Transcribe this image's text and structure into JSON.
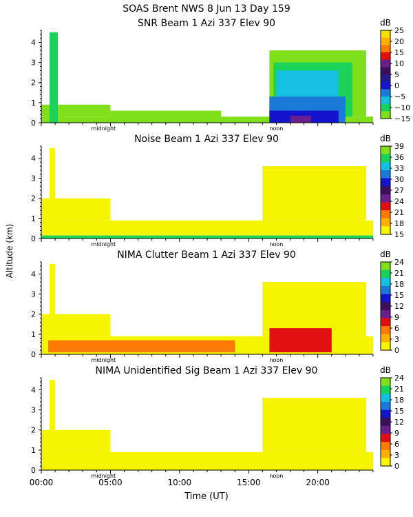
{
  "header": {
    "line1": "SOAS Brent NWS    8 Jun 13 Day 159"
  },
  "shared": {
    "xlabel": "Time (UT)",
    "ylabel": "Altitude (km)",
    "xlim": [
      0,
      24
    ],
    "ylim": [
      0,
      4.6
    ],
    "xticks": [
      {
        "v": 0,
        "label": "00:00"
      },
      {
        "v": 5,
        "label": "05:00"
      },
      {
        "v": 10,
        "label": "10:00"
      },
      {
        "v": 15,
        "label": "15:00"
      },
      {
        "v": 20,
        "label": "20:00"
      }
    ],
    "yticks": [
      0,
      1,
      2,
      3,
      4
    ],
    "markers": [
      {
        "v": 4.5,
        "label": "midnight"
      },
      {
        "v": 17.0,
        "label": "noon"
      }
    ],
    "unit": "dB"
  },
  "chart_data": [
    {
      "type": "heatmap",
      "title": "SNR Beam 1 Azi 337 Elev 90",
      "colorbar_ticks": [
        "25",
        "20",
        "15",
        "10",
        "5",
        "0",
        "−5",
        "−10",
        "−15"
      ],
      "colors": [
        "#7fe01a",
        "#1ad15a",
        "#16c0e0",
        "#1a7ad6",
        "#1414cc",
        "#241a8a",
        "#3b0f5a",
        "#6a1f8e",
        "#e01010",
        "#ff7a00",
        "#ffb000",
        "#f5e000"
      ],
      "regions": [
        {
          "x": [
            0,
            24
          ],
          "y": [
            0,
            0.3
          ],
          "level": 0
        },
        {
          "x": [
            0,
            5
          ],
          "y": [
            0.3,
            0.9
          ],
          "level": 0
        },
        {
          "x": [
            0.6,
            1.2
          ],
          "y": [
            0,
            4.5
          ],
          "level": 1
        },
        {
          "x": [
            5,
            13
          ],
          "y": [
            0.2,
            0.6
          ],
          "level": 0
        },
        {
          "x": [
            16.5,
            23.5
          ],
          "y": [
            0.3,
            3.6
          ],
          "level": 0
        },
        {
          "x": [
            16.8,
            22.5
          ],
          "y": [
            0.3,
            3.0
          ],
          "level": 1
        },
        {
          "x": [
            17,
            21.5
          ],
          "y": [
            0,
            2.6
          ],
          "level": 2
        },
        {
          "x": [
            16.5,
            22
          ],
          "y": [
            0,
            1.3
          ],
          "level": 3
        },
        {
          "x": [
            16.5,
            21.5
          ],
          "y": [
            0,
            0.6
          ],
          "level": 4
        },
        {
          "x": [
            18,
            19.5
          ],
          "y": [
            0,
            0.35
          ],
          "level": 7
        }
      ]
    },
    {
      "type": "heatmap",
      "title": "Noise Beam 1 Azi 337 Elev 90",
      "colorbar_ticks": [
        "39",
        "36",
        "33",
        "30",
        "27",
        "24",
        "21",
        "18",
        "15"
      ],
      "colors": [
        "#f5f500",
        "#ffb000",
        "#ff7a00",
        "#e01010",
        "#6a1f8e",
        "#3b0f5a",
        "#1414cc",
        "#1a7ad6",
        "#16c0e0",
        "#1ad15a",
        "#7fe01a"
      ],
      "regions": [
        {
          "x": [
            0,
            24
          ],
          "y": [
            0,
            0.9
          ],
          "level": 0
        },
        {
          "x": [
            0,
            5
          ],
          "y": [
            0.9,
            2.0
          ],
          "level": 0
        },
        {
          "x": [
            0.6,
            1.0
          ],
          "y": [
            0,
            4.5
          ],
          "level": 0
        },
        {
          "x": [
            16,
            23.5
          ],
          "y": [
            0.9,
            3.6
          ],
          "level": 0
        },
        {
          "x": [
            0,
            24
          ],
          "y": [
            0,
            0.15
          ],
          "level": 9
        }
      ]
    },
    {
      "type": "heatmap",
      "title": "NIMA Clutter Beam 1 Azi 337 Elev 90",
      "colorbar_ticks": [
        "24",
        "21",
        "18",
        "15",
        "12",
        "9",
        "6",
        "3",
        "0"
      ],
      "colors": [
        "#f5f500",
        "#ffb000",
        "#ff7a00",
        "#e01010",
        "#6a1f8e",
        "#3b0f5a",
        "#1414cc",
        "#1a7ad6",
        "#16c0e0",
        "#1ad15a",
        "#7fe01a"
      ],
      "regions": [
        {
          "x": [
            0,
            24
          ],
          "y": [
            0,
            0.9
          ],
          "level": 0
        },
        {
          "x": [
            0,
            5
          ],
          "y": [
            0.9,
            2.0
          ],
          "level": 0
        },
        {
          "x": [
            0.6,
            1.0
          ],
          "y": [
            0,
            4.5
          ],
          "level": 0
        },
        {
          "x": [
            16,
            23.5
          ],
          "y": [
            0.9,
            3.6
          ],
          "level": 0
        },
        {
          "x": [
            0.5,
            14
          ],
          "y": [
            0.1,
            0.7
          ],
          "level": 2
        },
        {
          "x": [
            16.5,
            21
          ],
          "y": [
            0.1,
            1.3
          ],
          "level": 3
        }
      ]
    },
    {
      "type": "heatmap",
      "title": "NIMA Unidentified Sig Beam 1 Azi 337 Elev 90",
      "colorbar_ticks": [
        "24",
        "21",
        "18",
        "15",
        "12",
        "9",
        "6",
        "3",
        "0"
      ],
      "colors": [
        "#f5f500",
        "#ffb000",
        "#ff7a00",
        "#e01010",
        "#6a1f8e",
        "#3b0f5a",
        "#1414cc",
        "#1a7ad6",
        "#16c0e0",
        "#1ad15a",
        "#7fe01a"
      ],
      "regions": [
        {
          "x": [
            0,
            24
          ],
          "y": [
            0,
            0.9
          ],
          "level": 0
        },
        {
          "x": [
            0,
            5
          ],
          "y": [
            0.9,
            2.0
          ],
          "level": 0
        },
        {
          "x": [
            0.6,
            1.0
          ],
          "y": [
            0,
            4.5
          ],
          "level": 0
        },
        {
          "x": [
            16,
            23.5
          ],
          "y": [
            0.9,
            3.6
          ],
          "level": 0
        }
      ]
    }
  ]
}
